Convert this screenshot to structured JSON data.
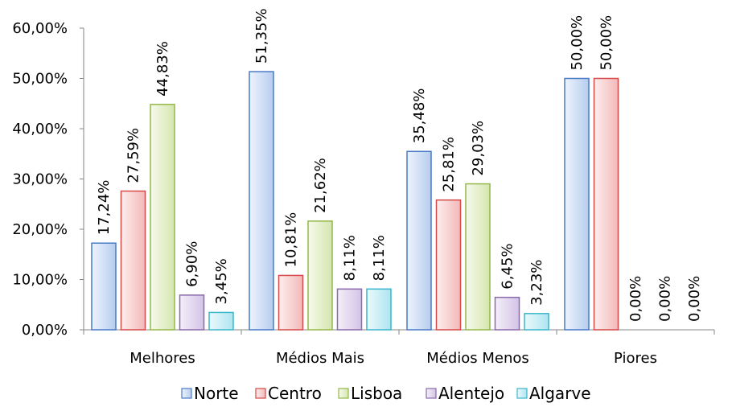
{
  "chart_data": {
    "type": "bar",
    "categories": [
      "Melhores",
      "Médios Mais",
      "Médios Menos",
      "Piores"
    ],
    "series": [
      {
        "name": "Norte",
        "values": [
          17.24,
          51.35,
          35.48,
          50.0
        ],
        "labels": [
          "17,24%",
          "51,35%",
          "35,48%",
          "50,00%"
        ],
        "color": "#4a7ac6",
        "fill_light": "#eef3fc",
        "fill_dark": "#b6cdf0"
      },
      {
        "name": "Centro",
        "values": [
          27.59,
          10.81,
          25.81,
          50.0
        ],
        "labels": [
          "27,59%",
          "10,81%",
          "25,81%",
          "50,00%"
        ],
        "color": "#d64a4a",
        "fill_light": "#fdeeee",
        "fill_dark": "#f3b8b8"
      },
      {
        "name": "Lisboa",
        "values": [
          44.83,
          21.62,
          29.03,
          0.0
        ],
        "labels": [
          "44,83%",
          "21,62%",
          "29,03%",
          "0,00%"
        ],
        "color": "#94b84a",
        "fill_light": "#f6faea",
        "fill_dark": "#d5e6b0"
      },
      {
        "name": "Alentejo",
        "values": [
          6.9,
          8.11,
          6.45,
          0.0
        ],
        "labels": [
          "6,90%",
          "8,11%",
          "6,45%",
          "0,00%"
        ],
        "color": "#8a6aab",
        "fill_light": "#f4eff9",
        "fill_dark": "#d3c3e6"
      },
      {
        "name": "Algarve",
        "values": [
          3.45,
          8.11,
          3.23,
          0.0
        ],
        "labels": [
          "3,45%",
          "8,11%",
          "3,23%",
          "0,00%"
        ],
        "color": "#3cb6cc",
        "fill_light": "#ebf9fc",
        "fill_dark": "#ade5f0"
      }
    ],
    "y_ticks": [
      "0,00%",
      "10,00%",
      "20,00%",
      "30,00%",
      "40,00%",
      "50,00%",
      "60,00%"
    ],
    "ylim": [
      0,
      60
    ],
    "grid": false,
    "legend_position": "bottom",
    "title": "",
    "xlabel": "",
    "ylabel": ""
  }
}
